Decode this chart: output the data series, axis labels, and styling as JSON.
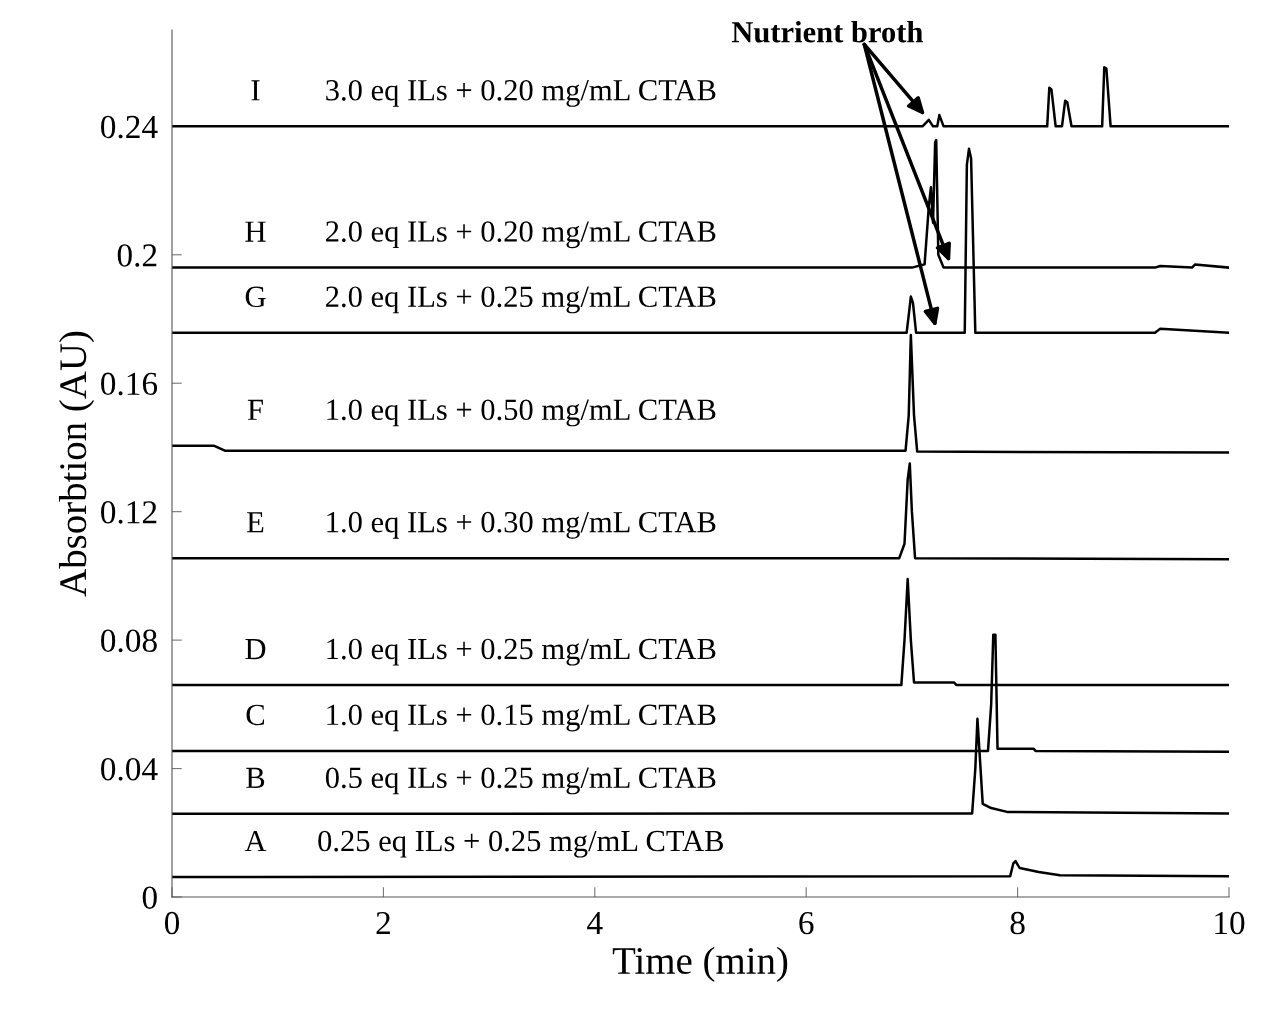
{
  "chart_data": {
    "type": "line",
    "xlabel": "Time (min)",
    "ylabel": "Absorbtion (AU)",
    "xlim": [
      0,
      10
    ],
    "ylim": [
      0,
      0.27
    ],
    "xticks": [
      0,
      2,
      4,
      6,
      8,
      10
    ],
    "yticks": [
      0,
      0.04,
      0.08,
      0.12,
      0.16,
      0.2,
      0.24
    ],
    "grid": false,
    "legend": false,
    "marker": "none",
    "line_style": "solid",
    "series": [
      {
        "name": "I",
        "color": "#000000",
        "x": [
          0,
          6.6,
          7.1,
          7.16,
          7.2,
          7.24,
          7.26,
          7.3,
          8.28,
          8.3,
          8.32,
          8.36,
          8.42,
          8.45,
          8.47,
          8.51,
          8.8,
          8.82,
          8.84,
          8.88,
          10
        ],
        "values": [
          0.24,
          0.24,
          0.24,
          0.242,
          0.24,
          0.24,
          0.2435,
          0.24,
          0.24,
          0.252,
          0.2515,
          0.24,
          0.24,
          0.248,
          0.2475,
          0.24,
          0.24,
          0.2584,
          0.258,
          0.24,
          0.24
        ]
      },
      {
        "name": "H",
        "color": "#000000",
        "x": [
          0,
          7.0,
          7.12,
          7.16,
          7.18,
          7.2,
          7.22,
          7.23,
          7.25,
          7.3,
          9.3,
          9.35,
          9.65,
          9.68,
          10
        ],
        "values": [
          0.196,
          0.196,
          0.197,
          0.215,
          0.221,
          0.21,
          0.235,
          0.2357,
          0.2,
          0.196,
          0.196,
          0.1965,
          0.196,
          0.197,
          0.196
        ]
      },
      {
        "name": "G",
        "color": "#000000",
        "x": [
          0,
          6.95,
          6.98,
          6.99,
          7.01,
          7.04,
          7.5,
          7.52,
          7.54,
          7.56,
          7.6,
          9.3,
          9.35,
          10
        ],
        "values": [
          0.1757,
          0.1757,
          0.184,
          0.187,
          0.185,
          0.1757,
          0.1757,
          0.228,
          0.233,
          0.23,
          0.1757,
          0.1757,
          0.177,
          0.1757
        ]
      },
      {
        "name": "F",
        "color": "#000000",
        "x": [
          0,
          0.4,
          0.5,
          6.94,
          6.97,
          6.99,
          7.02,
          7.05,
          10
        ],
        "values": [
          0.1405,
          0.1405,
          0.139,
          0.139,
          0.15,
          0.175,
          0.15,
          0.1387,
          0.1384
        ]
      },
      {
        "name": "E",
        "color": "#000000",
        "x": [
          0,
          6.88,
          6.93,
          6.96,
          6.98,
          7.0,
          7.03,
          10
        ],
        "values": [
          0.1055,
          0.1055,
          0.11,
          0.13,
          0.135,
          0.12,
          0.1055,
          0.1052
        ]
      },
      {
        "name": "D",
        "color": "#000000",
        "x": [
          0,
          6.9,
          6.93,
          6.96,
          6.99,
          7.02,
          7.4,
          7.42,
          10
        ],
        "values": [
          0.066,
          0.066,
          0.08,
          0.099,
          0.08,
          0.0668,
          0.0668,
          0.066,
          0.066
        ]
      },
      {
        "name": "C",
        "color": "#000000",
        "x": [
          0,
          7.72,
          7.75,
          7.77,
          7.79,
          7.81,
          8.15,
          8.17,
          10
        ],
        "values": [
          0.0455,
          0.0455,
          0.06,
          0.0817,
          0.0817,
          0.0462,
          0.0462,
          0.0455,
          0.0452
        ]
      },
      {
        "name": "B",
        "color": "#000000",
        "x": [
          0,
          7.57,
          7.6,
          7.62,
          7.64,
          7.67,
          7.75,
          7.9,
          10
        ],
        "values": [
          0.0259,
          0.026,
          0.04,
          0.0555,
          0.045,
          0.029,
          0.0277,
          0.0265,
          0.026
        ]
      },
      {
        "name": "A",
        "color": "#000000",
        "x": [
          0,
          7.93,
          7.96,
          7.98,
          8.02,
          8.2,
          8.4,
          10
        ],
        "values": [
          0.0062,
          0.0065,
          0.0105,
          0.0112,
          0.009,
          0.0078,
          0.0068,
          0.0065
        ]
      }
    ],
    "annotations": [
      {
        "text": "Nutrient broth",
        "x": 7.16,
        "y": 0.242
      },
      "3.0 eq ILs + 0.20 mg/mL CTAB",
      "2.0 eq ILs + 0.20 mg/mL CTAB",
      "2.0 eq ILs + 0.25 mg/mL CTAB",
      "1.0 eq ILs + 0.50 mg/mL CTAB",
      "1.0 eq ILs + 0.30 mg/mL CTAB",
      "1.0 eq ILs + 0.25 mg/mL CTAB",
      "1.0 eq ILs + 0.15 mg/mL CTAB",
      "0.5 eq ILs + 0.25 mg/mL CTAB",
      "0.25 eq ILs + 0.25 mg/mL CTAB"
    ]
  }
}
